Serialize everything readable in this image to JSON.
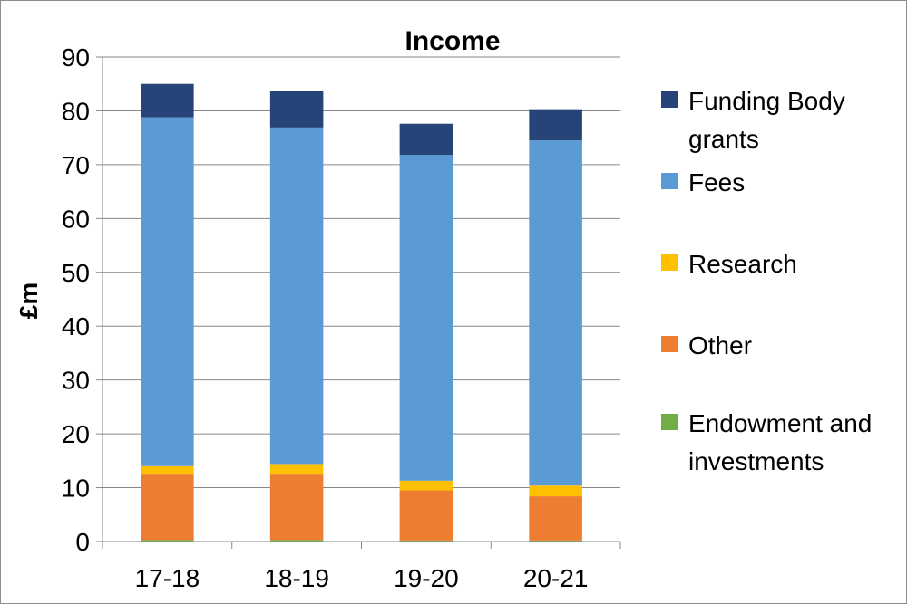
{
  "chart_data": {
    "type": "bar",
    "stacked": true,
    "title": "Income",
    "xlabel": "",
    "ylabel": "£m",
    "ylim": [
      0,
      90
    ],
    "yticks": [
      0,
      10,
      20,
      30,
      40,
      50,
      60,
      70,
      80,
      90
    ],
    "grid": true,
    "legend_position": "right",
    "categories": [
      "17-18",
      "18-19",
      "19-20",
      "20-21"
    ],
    "series": [
      {
        "name": "Endowment and investments",
        "color": "#70ad47",
        "values": [
          0.3,
          0.3,
          0.2,
          0.2
        ]
      },
      {
        "name": "Other",
        "color": "#ed7d31",
        "values": [
          12.3,
          12.3,
          9.3,
          8.2
        ]
      },
      {
        "name": "Research",
        "color": "#ffc000",
        "values": [
          1.4,
          1.8,
          1.8,
          2.0
        ]
      },
      {
        "name": "Fees",
        "color": "#5b9bd5",
        "values": [
          64.8,
          62.5,
          60.5,
          64.1
        ]
      },
      {
        "name": "Funding Body grants",
        "color": "#264478",
        "values": [
          6.2,
          6.8,
          5.8,
          5.8
        ]
      }
    ]
  }
}
